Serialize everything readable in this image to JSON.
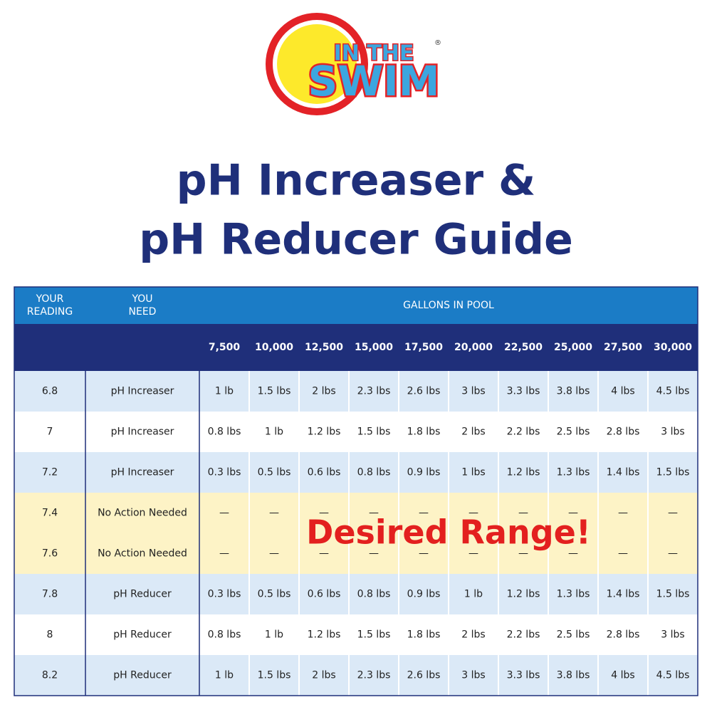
{
  "logo": {
    "line1": "IN THE",
    "line2": "SWIM",
    "mark": "®"
  },
  "title": [
    "pH Increaser &",
    "pH Reducer Guide"
  ],
  "table": {
    "header": {
      "reading": [
        "YOUR",
        "READING"
      ],
      "need": [
        "YOU",
        "NEED"
      ],
      "gallons_label": "GALLONS IN POOL"
    },
    "gallons": [
      "7,500",
      "10,000",
      "12,500",
      "15,000",
      "17,500",
      "20,000",
      "22,500",
      "25,000",
      "27,500",
      "30,000"
    ],
    "rows": [
      [
        "6.8",
        "pH Increaser",
        "1 lb",
        "1.5 lbs",
        "2 lbs",
        "2.3 lbs",
        "2.6 lbs",
        "3 lbs",
        "3.3 lbs",
        "3.8 lbs",
        "4 lbs",
        "4.5 lbs"
      ],
      [
        "7",
        "pH Increaser",
        "0.8 lbs",
        "1 lb",
        "1.2 lbs",
        "1.5 lbs",
        "1.8 lbs",
        "2 lbs",
        "2.2 lbs",
        "2.5 lbs",
        "2.8 lbs",
        "3 lbs"
      ],
      [
        "7.2",
        "pH Increaser",
        "0.3 lbs",
        "0.5 lbs",
        "0.6 lbs",
        "0.8 lbs",
        "0.9 lbs",
        "1 lbs",
        "1.2 lbs",
        "1.3 lbs",
        "1.4 lbs",
        "1.5 lbs"
      ],
      [
        "7.4",
        "No Action Needed",
        "—",
        "—",
        "—",
        "—",
        "—",
        "—",
        "—",
        "—",
        "—",
        "—"
      ],
      [
        "7.6",
        "No Action Needed",
        "—",
        "—",
        "—",
        "—",
        "—",
        "—",
        "—",
        "—",
        "—",
        "—"
      ],
      [
        "7.8",
        "pH Reducer",
        "0.3 lbs",
        "0.5 lbs",
        "0.6 lbs",
        "0.8 lbs",
        "0.9 lbs",
        "1 lb",
        "1.2 lbs",
        "1.3 lbs",
        "1.4 lbs",
        "1.5 lbs"
      ],
      [
        "8",
        "pH Reducer",
        "0.8 lbs",
        "1 lb",
        "1.2 lbs",
        "1.5 lbs",
        "1.8 lbs",
        "2 lbs",
        "2.2 lbs",
        "2.5 lbs",
        "2.8 lbs",
        "3 lbs"
      ],
      [
        "8.2",
        "pH Reducer",
        "1 lb",
        "1.5 lbs",
        "2 lbs",
        "2.3 lbs",
        "2.6 lbs",
        "3 lbs",
        "3.3 lbs",
        "3.8 lbs",
        "4 lbs",
        "4.5 lbs"
      ]
    ],
    "overlay": "Desired Range!"
  }
}
